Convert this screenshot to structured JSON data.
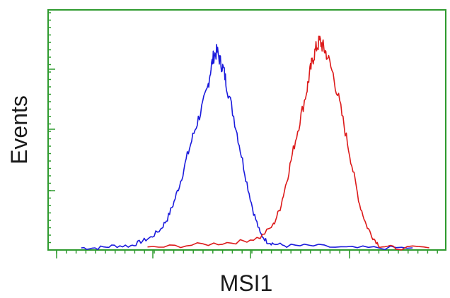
{
  "chart_data": {
    "type": "line",
    "title": "",
    "xlabel": "MSI1",
    "ylabel": "Events",
    "grid": false,
    "legend": "none",
    "axis_color": "#2e9a2e",
    "series": [
      {
        "color": "#1a1adc",
        "x": [
          0.1,
          0.15,
          0.2,
          0.25,
          0.28,
          0.31,
          0.34,
          0.36,
          0.38,
          0.4,
          0.42,
          0.44,
          0.46,
          0.48,
          0.49,
          0.5,
          0.51,
          0.52,
          0.53,
          0.54,
          0.56,
          0.58,
          0.6,
          0.62,
          0.64,
          0.66,
          0.68,
          0.72,
          0.8,
          0.9,
          1.0,
          1.1
        ],
        "y": [
          0.01,
          0.01,
          0.02,
          0.02,
          0.04,
          0.06,
          0.1,
          0.15,
          0.23,
          0.33,
          0.45,
          0.56,
          0.66,
          0.76,
          0.86,
          0.93,
          0.95,
          0.9,
          0.86,
          0.78,
          0.64,
          0.48,
          0.32,
          0.18,
          0.08,
          0.04,
          0.03,
          0.02,
          0.02,
          0.01,
          0.01,
          0.01
        ]
      },
      {
        "color": "#dc1a1a",
        "x": [
          0.3,
          0.4,
          0.5,
          0.58,
          0.64,
          0.68,
          0.7,
          0.72,
          0.74,
          0.76,
          0.78,
          0.79,
          0.8,
          0.81,
          0.82,
          0.83,
          0.84,
          0.86,
          0.88,
          0.9,
          0.92,
          0.94,
          0.96,
          0.98,
          1.0,
          1.05,
          1.15
        ],
        "y": [
          0.01,
          0.02,
          0.03,
          0.04,
          0.06,
          0.12,
          0.2,
          0.33,
          0.48,
          0.62,
          0.76,
          0.85,
          0.92,
          0.97,
          1.0,
          0.97,
          0.94,
          0.84,
          0.7,
          0.54,
          0.38,
          0.22,
          0.12,
          0.06,
          0.02,
          0.01,
          0.01
        ]
      }
    ]
  }
}
